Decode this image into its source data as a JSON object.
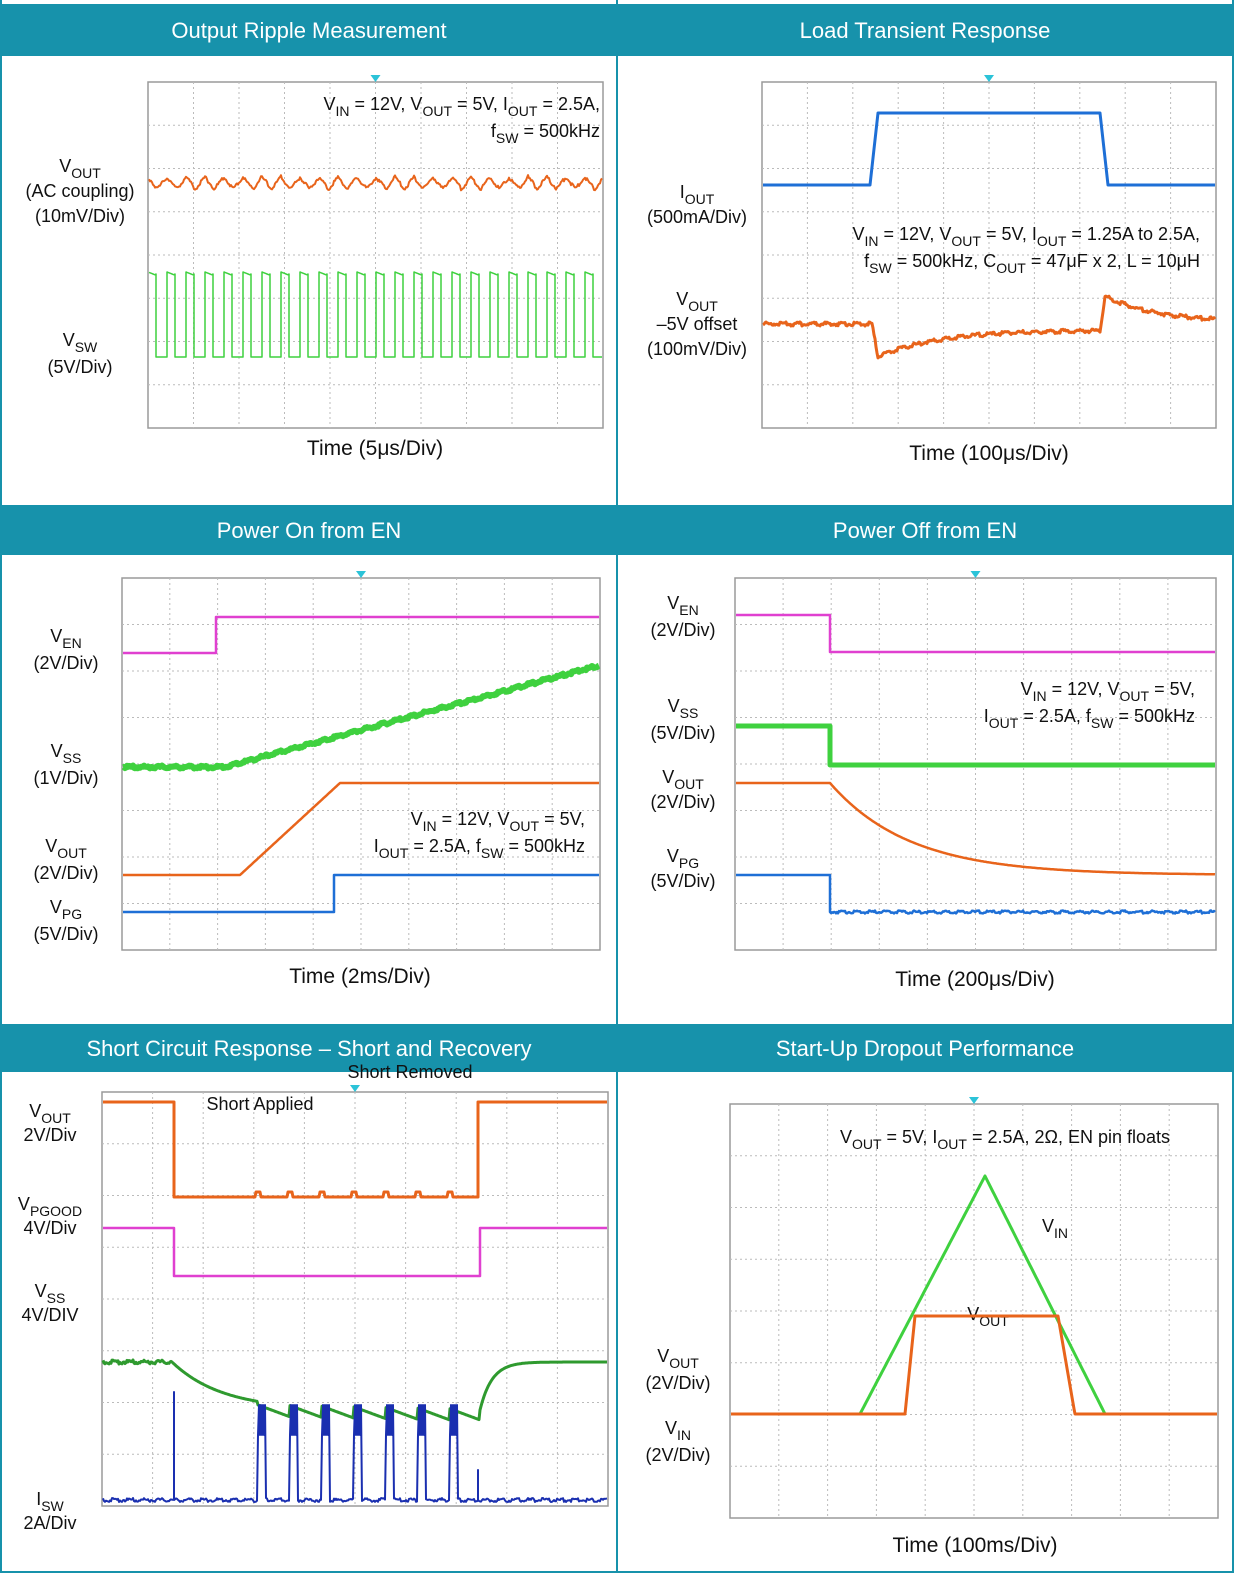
{
  "panels": [
    {
      "title": "Output Ripple Measurement",
      "labels": [
        [
          [
            "V",
            {
              "sub": "OUT"
            }
          ],
          [
            "(AC coupling)"
          ],
          [
            "(10mV/Div)"
          ]
        ],
        [
          [
            "V",
            {
              "sub": "SW"
            }
          ],
          [
            "(5V/Div)"
          ]
        ]
      ],
      "notes": [
        [
          [
            "V",
            {
              "sub": "IN"
            },
            " = 12V, V",
            {
              "sub": "OUT"
            },
            " = 5V, I",
            {
              "sub": "OUT"
            },
            " = 2.5A,"
          ],
          [
            "f",
            {
              "sub": "SW"
            },
            " = 500kHz"
          ]
        ]
      ],
      "xlabel": "Time (5μs/Div)"
    },
    {
      "title": "Load Transient Response",
      "labels": [
        [
          [
            "I",
            {
              "sub": "OUT"
            }
          ],
          [
            "(500mA/Div)"
          ]
        ],
        [
          [
            "V",
            {
              "sub": "OUT"
            }
          ],
          [
            "–5V offset"
          ],
          [
            "(100mV/Div)"
          ]
        ]
      ],
      "notes": [
        [
          [
            "V",
            {
              "sub": "IN"
            },
            " = 12V, V",
            {
              "sub": "OUT"
            },
            " = 5V, I",
            {
              "sub": "OUT"
            },
            " = 1.25A to 2.5A,"
          ],
          [
            "f",
            {
              "sub": "SW"
            },
            " = 500kHz, C",
            {
              "sub": "OUT"
            },
            " = 47μF x 2, L = 10μH"
          ]
        ]
      ],
      "xlabel": "Time (100μs/Div)"
    },
    {
      "title": "Power On from EN",
      "labels": [
        [
          [
            "V",
            {
              "sub": "EN"
            }
          ],
          [
            "(2V/Div)"
          ]
        ],
        [
          [
            "V",
            {
              "sub": "SS"
            }
          ],
          [
            "(1V/Div)"
          ]
        ],
        [
          [
            "V",
            {
              "sub": "OUT"
            }
          ],
          [
            "(2V/Div)"
          ]
        ],
        [
          [
            "V",
            {
              "sub": "PG"
            }
          ],
          [
            "(5V/Div)"
          ]
        ]
      ],
      "notes": [
        [
          [
            "V",
            {
              "sub": "IN"
            },
            " = 12V, V",
            {
              "sub": "OUT"
            },
            " = 5V,"
          ],
          [
            "I",
            {
              "sub": "OUT"
            },
            " = 2.5A, f",
            {
              "sub": "SW"
            },
            " = 500kHz"
          ]
        ]
      ],
      "xlabel": "Time (2ms/Div)"
    },
    {
      "title": "Power Off from EN",
      "labels": [
        [
          [
            "V",
            {
              "sub": "EN"
            }
          ],
          [
            "(2V/Div)"
          ]
        ],
        [
          [
            "V",
            {
              "sub": "SS"
            }
          ],
          [
            "(5V/Div)"
          ]
        ],
        [
          [
            "V",
            {
              "sub": "OUT"
            }
          ],
          [
            "(2V/Div)"
          ]
        ],
        [
          [
            "V",
            {
              "sub": "PG"
            }
          ],
          [
            "(5V/Div)"
          ]
        ]
      ],
      "notes": [
        [
          [
            "V",
            {
              "sub": "IN"
            },
            " = 12V, V",
            {
              "sub": "OUT"
            },
            " = 5V,"
          ],
          [
            "I",
            {
              "sub": "OUT"
            },
            " = 2.5A, f",
            {
              "sub": "SW"
            },
            " = 500kHz"
          ]
        ]
      ],
      "xlabel": "Time (200μs/Div)"
    },
    {
      "title": "Short Circuit Response – Short and Recovery",
      "labels": [
        [
          [
            "V",
            {
              "sub": "OUT"
            }
          ],
          [
            "2V/Div"
          ]
        ],
        [
          [
            "V",
            {
              "sub": "PGOOD"
            }
          ],
          [
            "4V/Div"
          ]
        ],
        [
          [
            "V",
            {
              "sub": "SS"
            }
          ],
          [
            "4V/DIV"
          ]
        ],
        [
          [
            "I",
            {
              "sub": "SW"
            }
          ],
          [
            "2A/Div"
          ]
        ]
      ],
      "notes": [
        [
          [
            "Short Applied"
          ]
        ],
        [
          [
            "Short Removed"
          ]
        ]
      ]
    },
    {
      "title": "Start-Up Dropout Performance",
      "labels": [
        [
          [
            "V",
            {
              "sub": "OUT"
            }
          ],
          [
            "(2V/Div)"
          ]
        ],
        [
          [
            "V",
            {
              "sub": "IN"
            }
          ],
          [
            "(2V/Div)"
          ]
        ]
      ],
      "notes": [
        [
          [
            "V",
            {
              "sub": "OUT"
            },
            " = 5V, I",
            {
              "sub": "OUT"
            },
            " = 2.5A, 2Ω, EN pin floats"
          ]
        ],
        [
          [
            "V",
            {
              "sub": "IN"
            }
          ]
        ],
        [
          [
            "V",
            {
              "sub": "OUT"
            }
          ]
        ]
      ],
      "xlabel": "Time (100ms/Div)"
    }
  ]
}
